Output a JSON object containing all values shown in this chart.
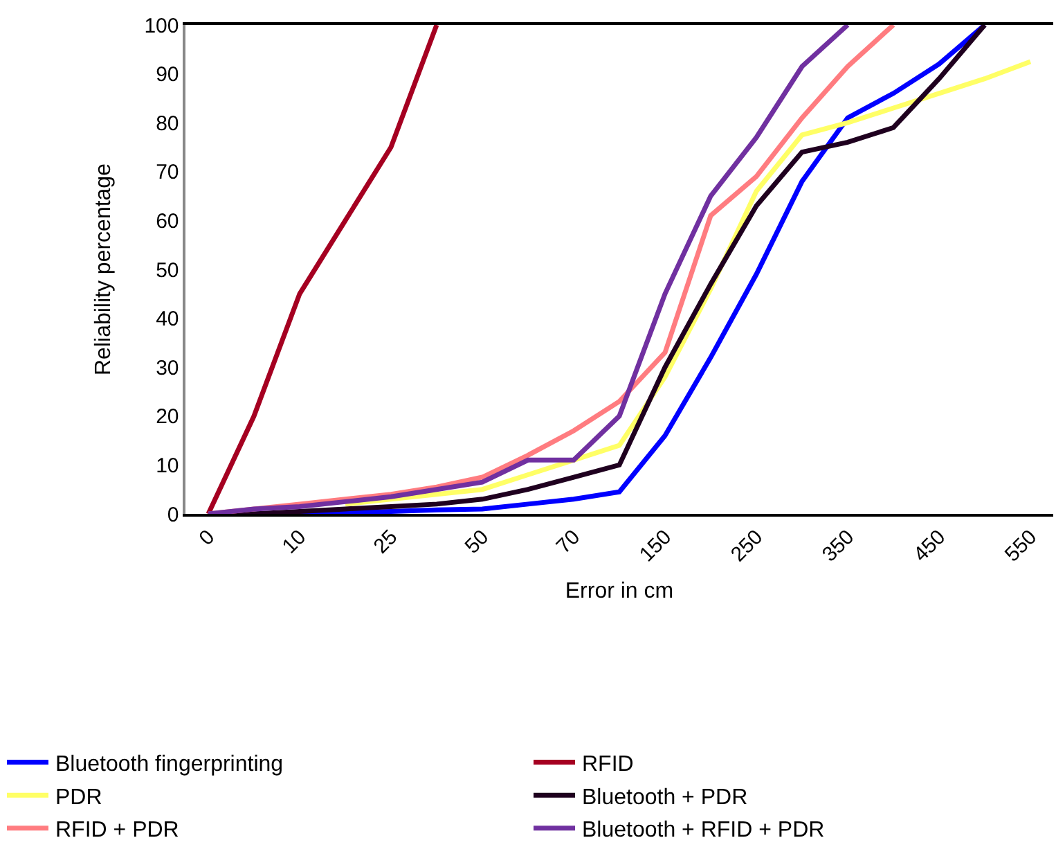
{
  "chart_data": {
    "type": "line",
    "xlabel": "Error in cm",
    "ylabel": "Reliability percentage",
    "categories": [
      "0",
      null,
      "10",
      null,
      "25",
      null,
      "50",
      null,
      "70",
      null,
      "150",
      null,
      "250",
      null,
      "350",
      null,
      "450",
      null,
      "550"
    ],
    "ylim": [
      0,
      100
    ],
    "yticks": [
      0,
      10,
      20,
      30,
      40,
      50,
      60,
      70,
      80,
      90,
      100
    ],
    "grid": false,
    "legend": "bottom",
    "marker": "none",
    "line_style": "solid",
    "series": [
      {
        "name": "Bluetooth fingerprinting",
        "color": "#0000ff",
        "values": [
          0,
          0,
          0,
          0.3,
          0.5,
          0.8,
          1,
          2,
          3,
          4.5,
          16,
          32,
          49,
          68,
          81,
          86,
          92,
          100,
          null
        ]
      },
      {
        "name": "RFID",
        "color": "#a50021",
        "values": [
          0,
          20,
          45,
          60,
          75,
          100,
          null,
          null,
          null,
          null,
          null,
          null,
          null,
          null,
          null,
          null,
          null,
          null,
          null
        ]
      },
      {
        "name": "PDR",
        "color": "#ffff66",
        "values": [
          null,
          null,
          null,
          2,
          3,
          4,
          5,
          8,
          11,
          14,
          28,
          46,
          66,
          77.5,
          80,
          83,
          86,
          89,
          92.5
        ]
      },
      {
        "name": "Bluetooth + PDR",
        "color": "#1f001f",
        "values": [
          0,
          0,
          0.5,
          1,
          1.5,
          2,
          3,
          5,
          7.5,
          10,
          30,
          47,
          63,
          74,
          76,
          79,
          89,
          100,
          null
        ]
      },
      {
        "name": "RFID + PDR",
        "color": "#ff7c80",
        "values": [
          0,
          1,
          2,
          3,
          4,
          5.5,
          7.5,
          12,
          17,
          23,
          33,
          61,
          69,
          81,
          91.5,
          100,
          null,
          null,
          null
        ]
      },
      {
        "name": "Bluetooth + RFID + PDR",
        "color": "#7030a0",
        "values": [
          0,
          1,
          1.5,
          2.5,
          3.5,
          5,
          6.5,
          11,
          11,
          20,
          45,
          65,
          77,
          91.5,
          100,
          null,
          null,
          null,
          null
        ]
      }
    ]
  }
}
